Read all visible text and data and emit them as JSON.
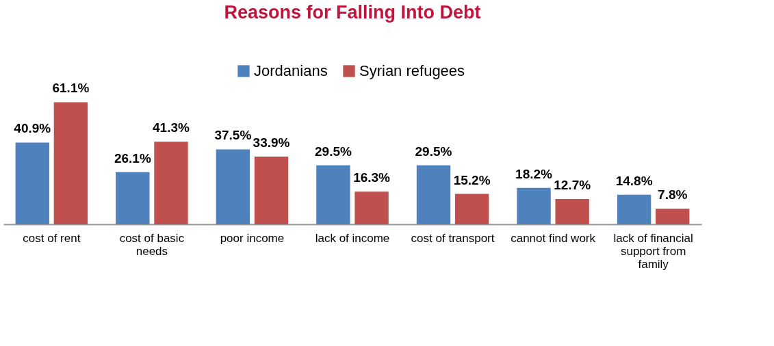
{
  "chart_data": {
    "type": "bar",
    "title": "Reasons for Falling Into Debt",
    "categories": [
      "cost of rent",
      "cost of basic needs",
      "poor income",
      "lack of income",
      "cost of transport",
      "cannot find work",
      "lack of financial support from family"
    ],
    "series": [
      {
        "name": "Jordanians",
        "color": "#4f81bd",
        "values": [
          40.9,
          26.1,
          37.5,
          29.5,
          29.5,
          18.2,
          14.8
        ],
        "value_labels": [
          "40.9%",
          "26.1%",
          "37.5%",
          "29.5%",
          "29.5%",
          "18.2%",
          "14.8%"
        ]
      },
      {
        "name": "Syrian refugees",
        "color": "#c0504d",
        "values": [
          61.1,
          41.3,
          33.9,
          16.3,
          15.2,
          12.7,
          7.8
        ],
        "value_labels": [
          "61.1%",
          "41.3%",
          "33.9%",
          "16.3%",
          "15.2%",
          "12.7%",
          "7.8%"
        ]
      }
    ],
    "legend": "top"
  }
}
